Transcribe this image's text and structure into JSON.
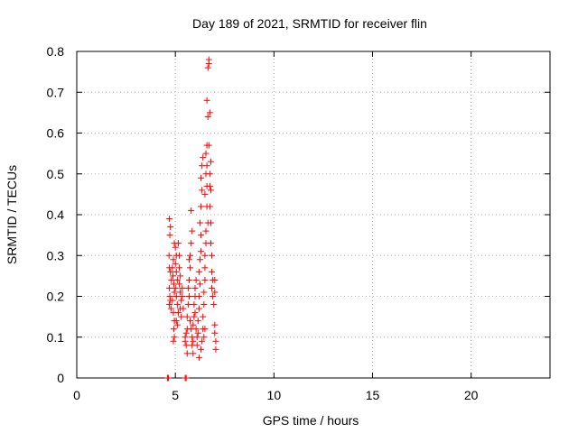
{
  "chart_data": {
    "type": "scatter",
    "title": "Day 189 of 2021, SRMTID for receiver flin",
    "xlabel": "GPS time / hours",
    "ylabel": "SRMTID / TECUs",
    "xlim": [
      0,
      24
    ],
    "ylim": [
      0,
      0.8
    ],
    "xticks": [
      0,
      5,
      10,
      15,
      20
    ],
    "xtick_labels": [
      "0",
      "5",
      "10",
      "15",
      "20"
    ],
    "yticks": [
      0,
      0.1,
      0.2,
      0.3,
      0.4,
      0.5,
      0.6,
      0.7,
      0.8
    ],
    "ytick_labels": [
      "0",
      "0.1",
      "0.2",
      "0.3",
      "0.4",
      "0.5",
      "0.6",
      "0.7",
      "0.8"
    ],
    "grid": true,
    "marker": "+",
    "colors": {
      "series": "#ff0000",
      "axes": "#000000",
      "grid": "#b0b0b0",
      "background": "#ffffff"
    },
    "series": [
      {
        "name": "SRMTID",
        "points": [
          [
            4.6,
            0.0
          ],
          [
            4.65,
            0.0
          ],
          [
            5.5,
            0.0
          ],
          [
            5.55,
            0.0
          ],
          [
            4.7,
            0.39
          ],
          [
            4.75,
            0.37
          ],
          [
            4.72,
            0.35
          ],
          [
            4.68,
            0.3
          ],
          [
            4.7,
            0.27
          ],
          [
            4.75,
            0.26
          ],
          [
            4.8,
            0.24
          ],
          [
            4.7,
            0.22
          ],
          [
            4.72,
            0.2
          ],
          [
            4.75,
            0.19
          ],
          [
            4.7,
            0.18
          ],
          [
            4.78,
            0.17
          ],
          [
            4.85,
            0.27
          ],
          [
            4.9,
            0.29
          ],
          [
            4.88,
            0.25
          ],
          [
            4.92,
            0.23
          ],
          [
            4.95,
            0.21
          ],
          [
            4.85,
            0.19
          ],
          [
            4.9,
            0.16
          ],
          [
            4.95,
            0.14
          ],
          [
            4.92,
            0.12
          ],
          [
            4.95,
            0.1
          ],
          [
            4.9,
            0.09
          ],
          [
            4.95,
            0.33
          ],
          [
            5.0,
            0.32
          ],
          [
            5.05,
            0.3
          ],
          [
            5.0,
            0.28
          ],
          [
            5.05,
            0.26
          ],
          [
            5.1,
            0.24
          ],
          [
            5.0,
            0.22
          ],
          [
            5.05,
            0.2
          ],
          [
            5.1,
            0.18
          ],
          [
            5.15,
            0.16
          ],
          [
            5.05,
            0.14
          ],
          [
            5.1,
            0.13
          ],
          [
            5.15,
            0.33
          ],
          [
            5.2,
            0.3
          ],
          [
            5.2,
            0.27
          ],
          [
            5.25,
            0.25
          ],
          [
            5.2,
            0.23
          ],
          [
            5.25,
            0.21
          ],
          [
            5.3,
            0.19
          ],
          [
            5.25,
            0.17
          ],
          [
            5.3,
            0.15
          ],
          [
            5.35,
            0.2
          ],
          [
            5.4,
            0.17
          ],
          [
            5.35,
            0.22
          ],
          [
            5.5,
            0.1
          ],
          [
            5.55,
            0.08
          ],
          [
            5.6,
            0.06
          ],
          [
            5.55,
            0.11
          ],
          [
            5.6,
            0.12
          ],
          [
            5.5,
            0.09
          ],
          [
            5.6,
            0.15
          ],
          [
            5.65,
            0.18
          ],
          [
            5.7,
            0.2
          ],
          [
            5.65,
            0.22
          ],
          [
            5.7,
            0.24
          ],
          [
            5.75,
            0.27
          ],
          [
            5.7,
            0.29
          ],
          [
            5.75,
            0.3
          ],
          [
            5.8,
            0.33
          ],
          [
            5.85,
            0.36
          ],
          [
            5.8,
            0.41
          ],
          [
            5.75,
            0.14
          ],
          [
            5.8,
            0.12
          ],
          [
            5.85,
            0.1
          ],
          [
            5.9,
            0.09
          ],
          [
            5.85,
            0.08
          ],
          [
            5.9,
            0.13
          ],
          [
            5.95,
            0.15
          ],
          [
            5.95,
            0.18
          ],
          [
            6.0,
            0.2
          ],
          [
            6.0,
            0.22
          ],
          [
            6.05,
            0.24
          ],
          [
            6.0,
            0.16
          ],
          [
            6.05,
            0.12
          ],
          [
            6.1,
            0.1
          ],
          [
            6.1,
            0.08
          ],
          [
            6.15,
            0.11
          ],
          [
            6.15,
            0.14
          ],
          [
            6.2,
            0.17
          ],
          [
            6.2,
            0.2
          ],
          [
            6.25,
            0.23
          ],
          [
            6.2,
            0.26
          ],
          [
            6.25,
            0.29
          ],
          [
            6.3,
            0.31
          ],
          [
            6.3,
            0.35
          ],
          [
            6.25,
            0.38
          ],
          [
            6.3,
            0.42
          ],
          [
            6.35,
            0.46
          ],
          [
            6.3,
            0.49
          ],
          [
            6.35,
            0.52
          ],
          [
            6.4,
            0.54
          ],
          [
            6.35,
            0.09
          ],
          [
            6.4,
            0.12
          ],
          [
            6.4,
            0.15
          ],
          [
            6.45,
            0.18
          ],
          [
            6.45,
            0.21
          ],
          [
            6.5,
            0.24
          ],
          [
            6.5,
            0.27
          ],
          [
            6.5,
            0.3
          ],
          [
            6.55,
            0.33
          ],
          [
            6.55,
            0.36
          ],
          [
            6.5,
            0.45
          ],
          [
            6.55,
            0.5
          ],
          [
            6.55,
            0.55
          ],
          [
            6.6,
            0.57
          ],
          [
            6.6,
            0.52
          ],
          [
            6.6,
            0.47
          ],
          [
            6.6,
            0.42
          ],
          [
            6.65,
            0.38
          ],
          [
            6.6,
            0.68
          ],
          [
            6.65,
            0.64
          ],
          [
            6.65,
            0.76
          ],
          [
            6.7,
            0.78
          ],
          [
            6.7,
            0.77
          ],
          [
            6.75,
            0.65
          ],
          [
            6.7,
            0.57
          ],
          [
            6.75,
            0.5
          ],
          [
            6.75,
            0.47
          ],
          [
            6.8,
            0.53
          ],
          [
            6.8,
            0.46
          ],
          [
            6.75,
            0.42
          ],
          [
            6.8,
            0.38
          ],
          [
            6.8,
            0.33
          ],
          [
            6.85,
            0.3
          ],
          [
            6.85,
            0.26
          ],
          [
            6.9,
            0.24
          ],
          [
            6.85,
            0.22
          ],
          [
            6.9,
            0.2
          ],
          [
            6.95,
            0.18
          ],
          [
            7.0,
            0.21
          ],
          [
            7.0,
            0.24
          ],
          [
            7.0,
            0.13
          ],
          [
            7.0,
            0.11
          ],
          [
            7.05,
            0.09
          ],
          [
            7.05,
            0.07
          ],
          [
            6.45,
            0.1
          ],
          [
            6.5,
            0.12
          ],
          [
            6.3,
            0.07
          ],
          [
            6.2,
            0.05
          ],
          [
            5.9,
            0.06
          ]
        ]
      }
    ]
  }
}
